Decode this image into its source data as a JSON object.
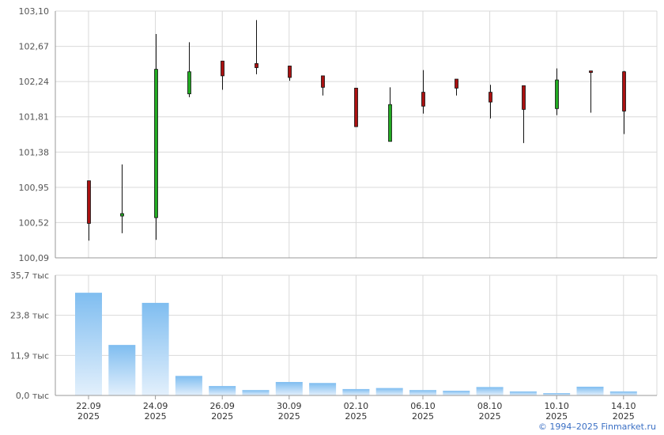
{
  "chart_data": [
    {
      "type": "candlestick",
      "y_ticks": [
        "103,10",
        "102,67",
        "102,24",
        "101,81",
        "101,38",
        "100,95",
        "100,52",
        "100,09"
      ],
      "ylim": [
        100.09,
        103.1
      ],
      "grid": true,
      "up_color": "#22aa22",
      "down_color": "#aa1111",
      "candles": [
        {
          "open": 101.03,
          "high": 101.03,
          "low": 100.3,
          "close": 100.51
        },
        {
          "open": 100.6,
          "high": 101.23,
          "low": 100.39,
          "close": 100.63
        },
        {
          "open": 100.58,
          "high": 102.82,
          "low": 100.31,
          "close": 102.39
        },
        {
          "open": 102.09,
          "high": 102.72,
          "low": 102.05,
          "close": 102.36
        },
        {
          "open": 102.49,
          "high": 102.49,
          "low": 102.14,
          "close": 102.31
        },
        {
          "open": 102.46,
          "high": 102.99,
          "low": 102.33,
          "close": 102.41
        },
        {
          "open": 102.43,
          "high": 102.43,
          "low": 102.25,
          "close": 102.29
        },
        {
          "open": 102.31,
          "high": 102.31,
          "low": 102.07,
          "close": 102.17
        },
        {
          "open": 102.16,
          "high": 102.16,
          "low": 101.72,
          "close": 101.69
        },
        {
          "open": 101.51,
          "high": 102.17,
          "low": 101.51,
          "close": 101.96
        },
        {
          "open": 102.11,
          "high": 102.38,
          "low": 101.85,
          "close": 101.94
        },
        {
          "open": 102.27,
          "high": 102.27,
          "low": 102.07,
          "close": 102.16
        },
        {
          "open": 102.11,
          "high": 102.2,
          "low": 101.79,
          "close": 101.99
        },
        {
          "open": 102.19,
          "high": 102.19,
          "low": 101.49,
          "close": 101.9
        },
        {
          "open": 101.91,
          "high": 102.4,
          "low": 101.83,
          "close": 102.26
        },
        {
          "open": 102.37,
          "high": 102.37,
          "low": 101.86,
          "close": 102.36
        },
        {
          "open": 102.36,
          "high": 102.37,
          "low": 101.6,
          "close": 101.88
        }
      ]
    },
    {
      "type": "bar",
      "y_ticks": [
        "35,7 тыс",
        "23,8 тыс",
        "11,9 тыс",
        "0,0 тыс"
      ],
      "ylim": [
        0,
        35.7
      ],
      "grid": true,
      "bar_color": "#7fbdf0",
      "values": [
        30.5,
        15.0,
        27.5,
        5.8,
        2.8,
        1.6,
        4.0,
        3.7,
        1.9,
        2.2,
        1.6,
        1.4,
        2.5,
        1.2,
        0.7,
        2.6,
        1.2
      ]
    }
  ],
  "x_labels": [
    {
      "index": 0,
      "date": "22.09",
      "year": "2025"
    },
    {
      "index": 2,
      "date": "24.09",
      "year": "2025"
    },
    {
      "index": 4,
      "date": "26.09",
      "year": "2025"
    },
    {
      "index": 6,
      "date": "30.09",
      "year": "2025"
    },
    {
      "index": 8,
      "date": "02.10",
      "year": "2025"
    },
    {
      "index": 10,
      "date": "06.10",
      "year": "2025"
    },
    {
      "index": 12,
      "date": "08.10",
      "year": "2025"
    },
    {
      "index": 14,
      "date": "10.10",
      "year": "2025"
    },
    {
      "index": 16,
      "date": "14.10",
      "year": "2025"
    }
  ],
  "copyright": "© 1994–2025 Finmarket.ru"
}
